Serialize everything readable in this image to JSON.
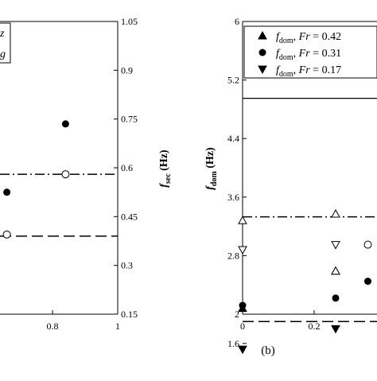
{
  "chart_data": [
    {
      "type": "scatter",
      "panel": "left",
      "xlim": [
        0,
        1
      ],
      "ylim_right": [
        0.15,
        1.05
      ],
      "x_tick_labels": [
        "0.8",
        "1"
      ],
      "y_tick_labels_right": [
        "1.05",
        "0.9",
        "0.75",
        "0.6",
        "0.45",
        "0.3",
        "0.15"
      ],
      "ylabel_right": "f",
      "ylabel_right_sub": "sec",
      "ylabel_right_unit": " (Hz)",
      "legend_fragments": [
        "z",
        "g"
      ],
      "series": [
        {
          "marker": "filled-circle",
          "points": [
            [
              0.66,
              0.525
            ],
            [
              0.84,
              0.735
            ]
          ]
        },
        {
          "marker": "open-circle",
          "points": [
            [
              0.66,
              0.395
            ],
            [
              0.84,
              0.58
            ]
          ]
        }
      ],
      "reference_lines": [
        {
          "style": "dash-dot",
          "value": 0.58
        },
        {
          "style": "dashed",
          "value": 0.39
        }
      ],
      "grid": false
    },
    {
      "type": "scatter",
      "panel": "right",
      "xlim": [
        0,
        0.55
      ],
      "ylim": [
        1.2,
        6
      ],
      "x_tick_labels": [
        "0",
        "0.2"
      ],
      "y_tick_labels": [
        "6",
        "5.2",
        "4.4",
        "3.6",
        "2.8",
        "2",
        "1.6"
      ],
      "ylabel": "f",
      "ylabel_sub": "dom",
      "ylabel_unit": " (Hz)",
      "panel_label": "(b)",
      "legend_placement": "top",
      "legend": [
        {
          "marker": "triangle-up",
          "prefix": "f",
          "sub": "dom",
          "mid": ", ",
          "var": "Fr",
          "value": " = 0.42"
        },
        {
          "marker": "filled-circle",
          "prefix": "f",
          "sub": "dom",
          "mid": ", ",
          "var": "Fr",
          "value": " = 0.31"
        },
        {
          "marker": "triangle-down",
          "prefix": "f",
          "sub": "dom",
          "mid": ", ",
          "var": "Fr",
          "value": " = 0.17"
        }
      ],
      "series": [
        {
          "name": "f_dom, Fr = 0.42",
          "marker": "triangle-up",
          "points": [
            [
              0,
              2.08
            ],
            [
              0.26,
              2.59
            ]
          ]
        },
        {
          "name": "f_dom, Fr = 0.31",
          "marker": "filled-circle",
          "points": [
            [
              0,
              2.12
            ],
            [
              0.26,
              2.22
            ],
            [
              0.35,
              2.45
            ]
          ]
        },
        {
          "name": "f_dom, Fr = 0.17",
          "marker": "triangle-down",
          "points": [
            [
              0,
              1.52
            ],
            [
              0.26,
              1.8
            ]
          ]
        },
        {
          "marker": "open-triangle-up",
          "points": [
            [
              0,
              3.28
            ],
            [
              0.26,
              3.37
            ],
            [
              0.26,
              2.59
            ]
          ]
        },
        {
          "marker": "open-circle",
          "points": [
            [
              0.35,
              2.95
            ]
          ]
        },
        {
          "marker": "open-triangle-down",
          "points": [
            [
              0,
              2.88
            ],
            [
              0.26,
              2.95
            ]
          ]
        }
      ],
      "reference_lines": [
        {
          "style": "dash-dot",
          "value": 3.33
        },
        {
          "style": "dashed",
          "value": 1.9
        },
        {
          "style": "solid",
          "value": 4.95
        }
      ],
      "grid": false
    }
  ]
}
